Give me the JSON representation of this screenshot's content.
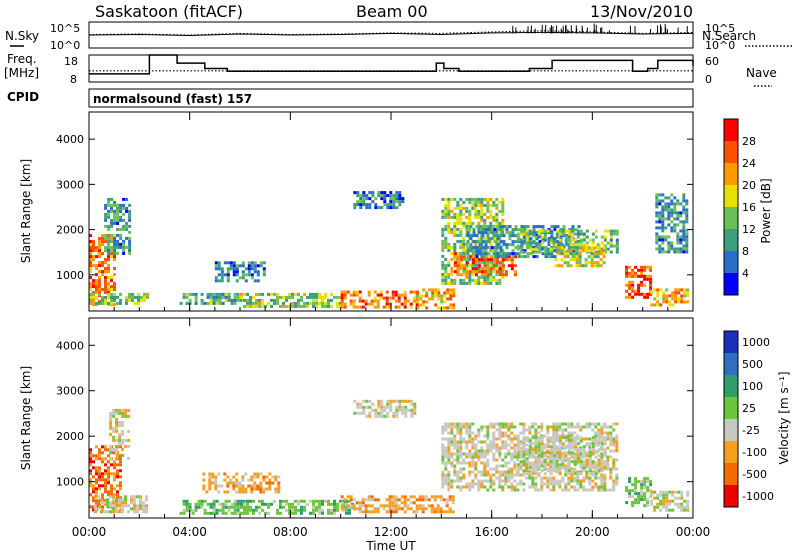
{
  "header": {
    "station": "Saskatoon (fitACF)",
    "beam": "Beam 00",
    "date": "13/Nov/2010"
  },
  "noise_panel": {
    "left_label": "N.Sky",
    "right_label": "N.Search",
    "left_ticks": [
      "10^5",
      "10^0"
    ],
    "right_ticks": [
      "10^5",
      "10^0"
    ]
  },
  "freq_panel": {
    "left_label_1": "Freq.",
    "left_label_2": "[MHz]",
    "right_label": "Nave",
    "left_ticks": [
      "18",
      "8"
    ],
    "right_ticks": [
      "60",
      "0"
    ]
  },
  "cpid": {
    "label": "CPID",
    "value": "normalsound (fast) 157"
  },
  "x_axis": {
    "label": "Time UT",
    "ticks": [
      "00:00",
      "04:00",
      "08:00",
      "12:00",
      "16:00",
      "20:00",
      "00:00"
    ]
  },
  "chart_data": [
    {
      "type": "line",
      "series": [
        {
          "name": "N.Sky",
          "x_hours": [
            0,
            2,
            4,
            6,
            8,
            10,
            12,
            14,
            16,
            18,
            20,
            22,
            24
          ],
          "values_log10": [
            2.5,
            2.6,
            2.4,
            2.7,
            2.5,
            2.6,
            2.8,
            2.6,
            2.9,
            3.0,
            2.9,
            2.7,
            2.8
          ]
        },
        {
          "name": "N.Search",
          "x_hours": [
            0,
            2,
            4,
            6,
            8,
            10,
            12,
            14,
            16,
            18,
            20,
            22,
            24
          ],
          "values_log10": [
            2.6,
            2.7,
            2.5,
            2.8,
            2.6,
            2.7,
            2.9,
            2.8,
            3.1,
            3.3,
            3.1,
            2.8,
            3.0
          ]
        }
      ],
      "ylim_log10": [
        0,
        5
      ]
    },
    {
      "type": "line",
      "series": [
        {
          "name": "Freq.",
          "step_hours": [
            0,
            2.1,
            2.4,
            3.5,
            4.6,
            5.5,
            8,
            10,
            13.8,
            14.1,
            14.7,
            17.5,
            18.4,
            21.6,
            22.2,
            22.6,
            24
          ],
          "values_mhz": [
            11,
            11,
            18,
            15,
            13,
            12,
            12,
            12,
            15,
            13,
            12,
            13,
            16,
            12,
            13,
            16,
            14
          ]
        },
        {
          "name": "Nave",
          "constant": 25
        }
      ],
      "ylim_freq": [
        8,
        18
      ],
      "ylim_nave": [
        0,
        60
      ]
    },
    {
      "type": "heatmap",
      "name": "Power",
      "ylabel": "Slant Range [km]",
      "yticks": [
        "1000",
        "2000",
        "3000",
        "4000"
      ],
      "ylim": [
        200,
        4600
      ],
      "xlim_hours": [
        0,
        24
      ],
      "colorbar_label": "Power [dB]",
      "colorbar_ticks": [
        "4",
        "8",
        "12",
        "16",
        "20",
        "24",
        "28"
      ],
      "colorscale": [
        "#0000ff",
        "#2b6ec8",
        "#3b9e80",
        "#6bbf5a",
        "#e8e000",
        "#ff9a00",
        "#ff5000",
        "#ff0000"
      ],
      "regions": [
        {
          "t": [
            0.0,
            1.0
          ],
          "r": [
            350,
            1900
          ],
          "v": 24
        },
        {
          "t": [
            0.0,
            2.3
          ],
          "r": [
            350,
            600
          ],
          "v": 14
        },
        {
          "t": [
            0.6,
            1.6
          ],
          "r": [
            1500,
            2700
          ],
          "v": 8
        },
        {
          "t": [
            3.6,
            6.0
          ],
          "r": [
            350,
            600
          ],
          "v": 10
        },
        {
          "t": [
            5.0,
            7.0
          ],
          "r": [
            900,
            1300
          ],
          "v": 6
        },
        {
          "t": [
            6.0,
            10.0
          ],
          "r": [
            300,
            600
          ],
          "v": 14
        },
        {
          "t": [
            10.0,
            13.0
          ],
          "r": [
            300,
            650
          ],
          "v": 24
        },
        {
          "t": [
            13.0,
            14.5
          ],
          "r": [
            300,
            700
          ],
          "v": 20
        },
        {
          "t": [
            10.5,
            12.5
          ],
          "r": [
            2500,
            2850
          ],
          "v": 6
        },
        {
          "t": [
            14.0,
            16.5
          ],
          "r": [
            800,
            2700
          ],
          "v": 14
        },
        {
          "t": [
            14.5,
            17.0
          ],
          "r": [
            1000,
            1500
          ],
          "v": 26
        },
        {
          "t": [
            15.0,
            19.5
          ],
          "r": [
            1400,
            2100
          ],
          "v": 8
        },
        {
          "t": [
            17.0,
            21.0
          ],
          "r": [
            1500,
            2000
          ],
          "v": 12
        },
        {
          "t": [
            18.5,
            20.5
          ],
          "r": [
            1200,
            1700
          ],
          "v": 16
        },
        {
          "t": [
            21.3,
            22.3
          ],
          "r": [
            500,
            1200
          ],
          "v": 26
        },
        {
          "t": [
            22.3,
            23.8
          ],
          "r": [
            350,
            700
          ],
          "v": 20
        },
        {
          "t": [
            22.5,
            23.7
          ],
          "r": [
            1500,
            2800
          ],
          "v": 8
        }
      ]
    },
    {
      "type": "heatmap",
      "name": "Velocity",
      "ylabel": "Slant Range [km]",
      "yticks": [
        "1000",
        "2000",
        "3000",
        "4000"
      ],
      "ylim": [
        200,
        4600
      ],
      "xlim_hours": [
        0,
        24
      ],
      "colorbar_label": "Velocity [m s⁻¹]",
      "colorbar_ticks": [
        "1000",
        "500",
        "100",
        "25",
        "-25",
        "-100",
        "-500",
        "-1000"
      ],
      "colorscale": [
        "#1c2fb8",
        "#2f6ec0",
        "#2f9e6b",
        "#6cc63c",
        "#c8c8c0",
        "#f7a020",
        "#f56a00",
        "#ee0000"
      ],
      "regions": [
        {
          "t": [
            0.0,
            1.2
          ],
          "r": [
            400,
            1800
          ],
          "v": 6
        },
        {
          "t": [
            0.2,
            2.3
          ],
          "r": [
            350,
            700
          ],
          "v": 4
        },
        {
          "t": [
            0.8,
            1.6
          ],
          "r": [
            1500,
            2600
          ],
          "v": 4
        },
        {
          "t": [
            3.6,
            6.2
          ],
          "r": [
            300,
            600
          ],
          "v": 3
        },
        {
          "t": [
            6.0,
            10.5
          ],
          "r": [
            300,
            600
          ],
          "v": 3
        },
        {
          "t": [
            4.5,
            7.5
          ],
          "r": [
            800,
            1200
          ],
          "v": 5
        },
        {
          "t": [
            10.0,
            14.5
          ],
          "r": [
            350,
            700
          ],
          "v": 5
        },
        {
          "t": [
            10.5,
            13.0
          ],
          "r": [
            2450,
            2800
          ],
          "v": 4
        },
        {
          "t": [
            14.0,
            21.0
          ],
          "r": [
            800,
            2300
          ],
          "v": 4
        },
        {
          "t": [
            17.0,
            20.5
          ],
          "r": [
            1200,
            2000
          ],
          "v": 4
        },
        {
          "t": [
            21.3,
            22.3
          ],
          "r": [
            450,
            1100
          ],
          "v": 3
        },
        {
          "t": [
            22.3,
            23.8
          ],
          "r": [
            350,
            800
          ],
          "v": 4
        }
      ]
    }
  ]
}
